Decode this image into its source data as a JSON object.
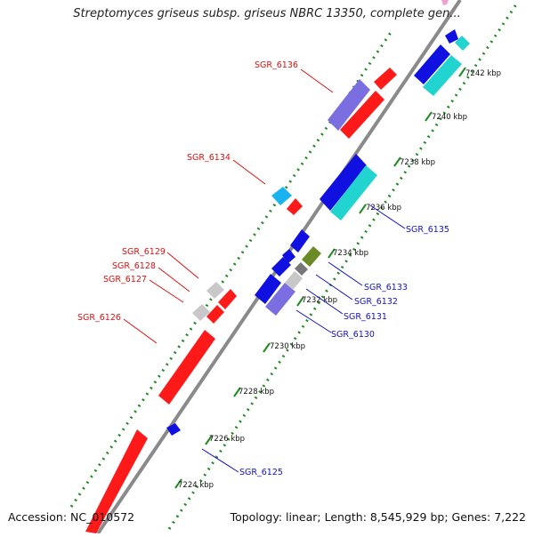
{
  "title": "Streptomyces griseus subsp. griseus NBRC 13350, complete gen...",
  "footer": {
    "accession": "Accession: NC_010572",
    "summary": "Topology: linear; Length: 8,545,929 bp; Genes: 7,222"
  },
  "colors": {
    "axis": "#8a8a8a",
    "ruler_dot": "#1f8a1f",
    "label_red": "#dd1111",
    "label_blue": "#1111cc",
    "gene_red": "#ff1a1a",
    "gene_blue": "#1010e0",
    "gene_cyan": "#22d4d0",
    "gene_purple": "#7a6ee0",
    "gene_lightblue": "#19b4f0",
    "gene_olive": "#6b8a25",
    "gene_gray": "#c8c8c8",
    "gene_darkgray": "#777777",
    "gene_pink": "#f0a0d0"
  },
  "ticks": [
    {
      "kbp": 7224,
      "label": "7224 kbp"
    },
    {
      "kbp": 7226,
      "label": "7226 kbp"
    },
    {
      "kbp": 7228,
      "label": "7228 kbp"
    },
    {
      "kbp": 7230,
      "label": "7230 kbp"
    },
    {
      "kbp": 7232,
      "label": "7232 kbp"
    },
    {
      "kbp": 7234,
      "label": "7234 kbp"
    },
    {
      "kbp": 7236,
      "label": "7236 kbp"
    },
    {
      "kbp": 7238,
      "label": "7238 kbp"
    },
    {
      "kbp": 7240,
      "label": "7240 kbp"
    },
    {
      "kbp": 7242,
      "label": "7242 kbp"
    }
  ],
  "gene_labels": [
    {
      "id": "SGR_6136",
      "text": "SGR_6136",
      "color": "red"
    },
    {
      "id": "SGR_6134",
      "text": "SGR_6134",
      "color": "red"
    },
    {
      "id": "SGR_6129",
      "text": "SGR_6129",
      "color": "red"
    },
    {
      "id": "SGR_6128",
      "text": "SGR_6128",
      "color": "red"
    },
    {
      "id": "SGR_6127",
      "text": "SGR_6127",
      "color": "red"
    },
    {
      "id": "SGR_6126",
      "text": "SGR_6126",
      "color": "red"
    },
    {
      "id": "SGR_6135",
      "text": "SGR_6135",
      "color": "blue"
    },
    {
      "id": "SGR_6133",
      "text": "SGR_6133",
      "color": "blue"
    },
    {
      "id": "SGR_6132",
      "text": "SGR_6132",
      "color": "blue"
    },
    {
      "id": "SGR_6131",
      "text": "SGR_6131",
      "color": "blue"
    },
    {
      "id": "SGR_6130",
      "text": "SGR_6130",
      "color": "blue"
    },
    {
      "id": "SGR_6125",
      "text": "SGR_6125",
      "color": "blue"
    }
  ]
}
